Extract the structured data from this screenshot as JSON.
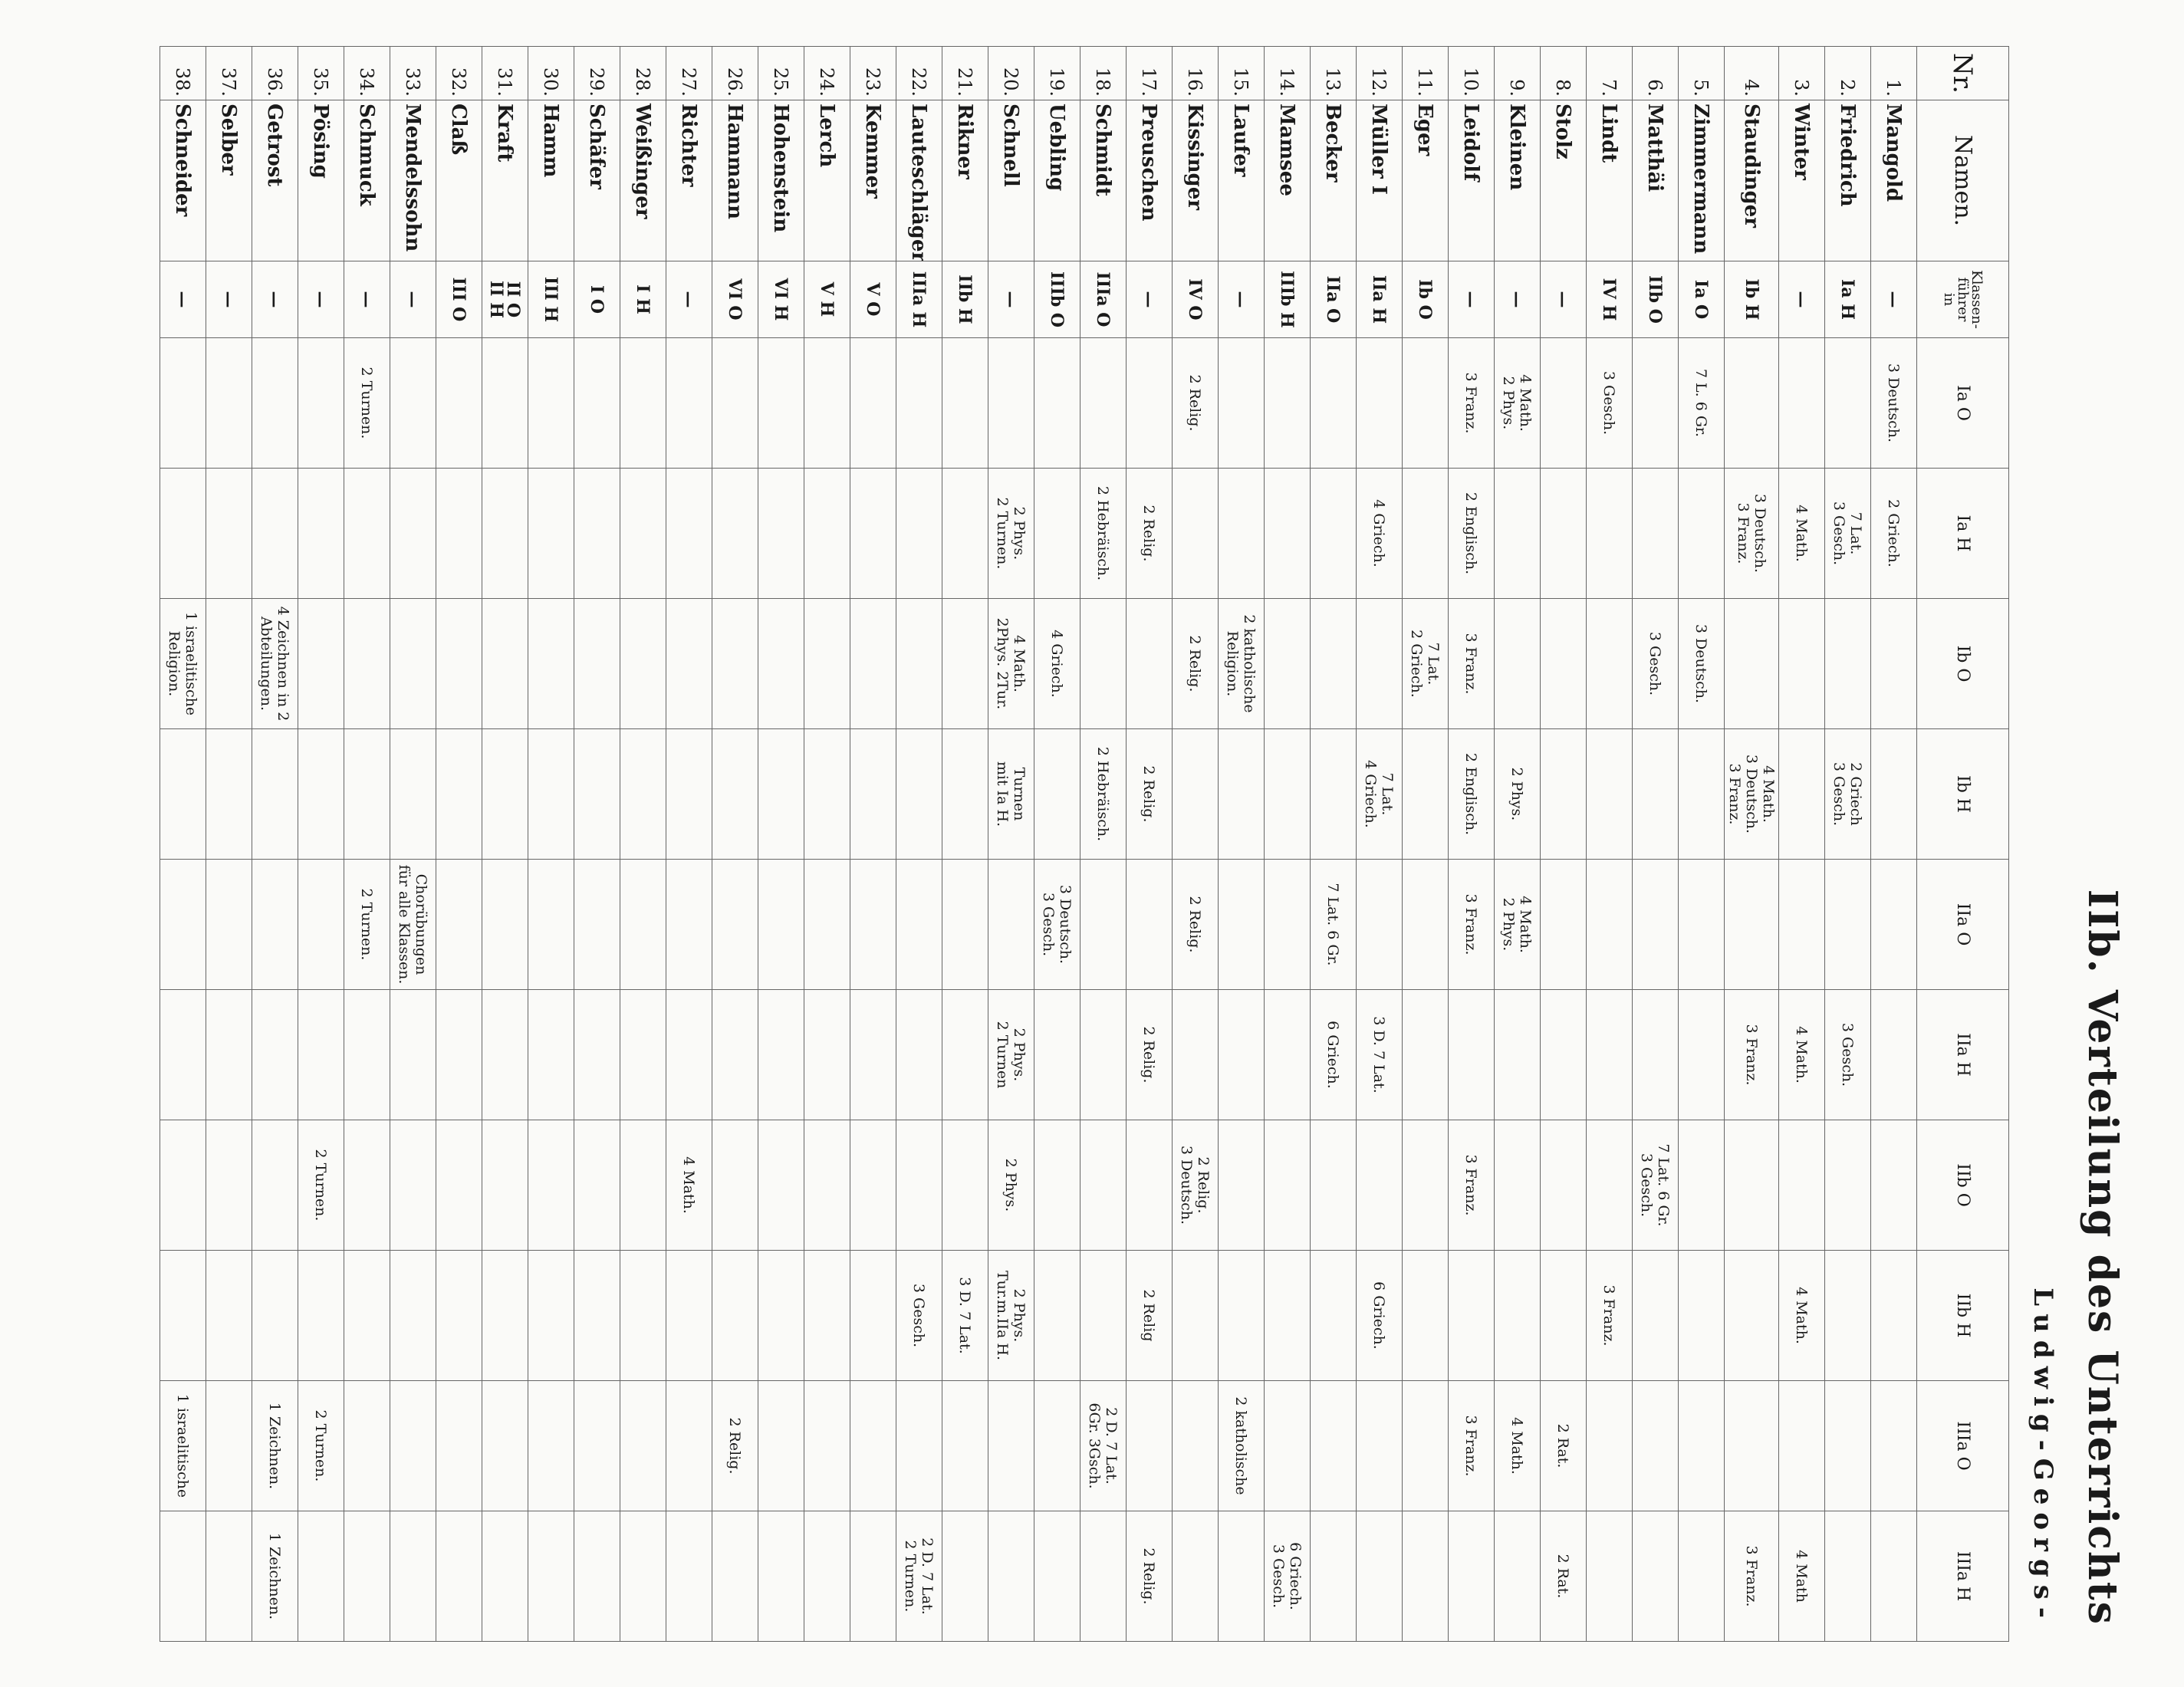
{
  "title": {
    "main": "IIb. Verteilung des Unterrichts",
    "sub": "Ludwig-Georgs-"
  },
  "headers": {
    "nr": "Nr.",
    "name": "Namen.",
    "klassenfuehrer": "Klassen-\nführer\nin",
    "classes": [
      "Ia O",
      "Ia H",
      "Ib O",
      "Ib H",
      "IIa O",
      "IIa H",
      "IIb O",
      "IIb H",
      "IIIa O",
      "IIIa H"
    ]
  },
  "rows": [
    {
      "nr": "1.",
      "name": "Mangold",
      "kl": "—",
      "cells": [
        "3 Deutsch.",
        "2 Griech.",
        "",
        "",
        "",
        "",
        "",
        "",
        "",
        ""
      ]
    },
    {
      "nr": "2.",
      "name": "Friedrich",
      "kl": "Ia H",
      "cells": [
        "",
        "7 Lat.\n3 Gesch.",
        "",
        "2 Griech\n3 Gesch.",
        "",
        "3 Gesch.",
        "",
        "",
        "",
        ""
      ]
    },
    {
      "nr": "3.",
      "name": "Winter",
      "kl": "—",
      "cells": [
        "",
        "4 Math.",
        "",
        "",
        "",
        "4 Math.",
        "",
        "4 Math.",
        "",
        "4 Math"
      ]
    },
    {
      "nr": "4.",
      "name": "Staudinger",
      "kl": "Ib H",
      "cells": [
        "",
        "3 Deutsch.\n3 Franz.",
        "",
        "4 Math.\n3 Deutsch.\n3 Franz.",
        "",
        "3 Franz.",
        "",
        "",
        "",
        "3 Franz."
      ]
    },
    {
      "nr": "5.",
      "name": "Zimmermann",
      "kl": "Ia O",
      "cells": [
        "7 L. 6 Gr.",
        "",
        "3 Deutsch.",
        "",
        "",
        "",
        "",
        "",
        "",
        ""
      ]
    },
    {
      "nr": "6.",
      "name": "Matthäi",
      "kl": "IIb O",
      "cells": [
        "",
        "",
        "3 Gesch.",
        "",
        "",
        "",
        "7 Lat. 6 Gr.\n3 Gesch.",
        "",
        "",
        ""
      ]
    },
    {
      "nr": "7.",
      "name": "Lindt",
      "kl": "IV H",
      "cells": [
        "3 Gesch.",
        "",
        "",
        "",
        "",
        "",
        "",
        "3 Franz.",
        "",
        ""
      ]
    },
    {
      "nr": "8.",
      "name": "Stolz",
      "kl": "—",
      "cells": [
        "",
        "",
        "",
        "",
        "",
        "",
        "",
        "",
        "2 Rat.",
        "2 Rat."
      ]
    },
    {
      "nr": "9.",
      "name": "Kleinen",
      "kl": "—",
      "cells": [
        "4 Math.\n2 Phys.",
        "",
        "",
        "2 Phys.",
        "4 Math.\n2 Phys.",
        "",
        "",
        "",
        "4 Math.",
        ""
      ]
    },
    {
      "nr": "10.",
      "name": "Leidolf",
      "kl": "—",
      "cells": [
        "3 Franz.",
        "2 Englisch.",
        "3 Franz.",
        "2 Englisch.",
        "3 Franz.",
        "",
        "3 Franz.",
        "",
        "3 Franz.",
        ""
      ]
    },
    {
      "nr": "11.",
      "name": "Eger",
      "kl": "Ib O",
      "cells": [
        "",
        "",
        "7 Lat.\n2 Griech.",
        "",
        "",
        "",
        "",
        "",
        "",
        ""
      ]
    },
    {
      "nr": "12.",
      "name": "Müller I",
      "kl": "IIa H",
      "cells": [
        "",
        "4 Griech.",
        "",
        "7 Lat.\n4 Griech.",
        "",
        "3 D. 7 Lat.",
        "",
        "6 Griech.",
        "",
        ""
      ]
    },
    {
      "nr": "13.",
      "name": "Becker",
      "kl": "IIa O",
      "cells": [
        "",
        "",
        "",
        "",
        "7 Lat. 6 Gr.",
        "6 Griech.",
        "",
        "",
        "",
        ""
      ]
    },
    {
      "nr": "14.",
      "name": "Mamsee",
      "kl": "IIIb H",
      "cells": [
        "",
        "",
        "",
        "",
        "",
        "",
        "",
        "",
        "",
        "6 Griech.\n3 Gesch."
      ]
    },
    {
      "nr": "15.",
      "name": "Laufer",
      "kl": "—",
      "cells": [
        "",
        "",
        "2 katholische Religion.",
        "",
        "",
        "",
        "",
        "",
        "2 katholische",
        ""
      ]
    },
    {
      "nr": "16.",
      "name": "Kissinger",
      "kl": "IV O",
      "cells": [
        "2 Relig.",
        "",
        "2 Relig.",
        "",
        "2 Relig.",
        "",
        "2 Relig.\n3 Deutsch.",
        "",
        "",
        ""
      ]
    },
    {
      "nr": "17.",
      "name": "Preuschen",
      "kl": "—",
      "cells": [
        "",
        "2 Relig.",
        "",
        "2 Relig.",
        "",
        "2 Relig.",
        "",
        "2 Relig",
        "",
        "2 Relig."
      ]
    },
    {
      "nr": "18.",
      "name": "Schmidt",
      "kl": "IIIa O",
      "cells": [
        "",
        "2 Hebräisch.",
        "",
        "2 Hebräisch.",
        "",
        "",
        "",
        "",
        "2 D. 7 Lat.\n6Gr. 3Gsch.",
        ""
      ]
    },
    {
      "nr": "19.",
      "name": "Uebling",
      "kl": "IIIb O",
      "cells": [
        "",
        "",
        "4 Griech.",
        "",
        "3 Deutsch.\n3 Gesch.",
        "",
        "",
        "",
        "",
        ""
      ]
    },
    {
      "nr": "20.",
      "name": "Schnell",
      "kl": "—",
      "cells": [
        "",
        "2 Phys.\n2 Turnen.",
        "4 Math.\n2Phys. 2Tur.",
        "Turnen\nmit Ia H.",
        "",
        "2 Phys.\n2 Turnen",
        "2 Phys.",
        "2 Phys.\nTur.m.IIa H.",
        "",
        ""
      ]
    },
    {
      "nr": "21.",
      "name": "Rikner",
      "kl": "IIb H",
      "cells": [
        "",
        "",
        "",
        "",
        "",
        "",
        "",
        "3 D. 7 Lat.",
        "",
        ""
      ]
    },
    {
      "nr": "22.",
      "name": "Lauteschläger",
      "kl": "IIIa H",
      "cells": [
        "",
        "",
        "",
        "",
        "",
        "",
        "",
        "3 Gesch.",
        "",
        "2 D. 7 Lat.\n2 Turnen."
      ]
    },
    {
      "nr": "23.",
      "name": "Kemmer",
      "kl": "V O",
      "cells": [
        "",
        "",
        "",
        "",
        "",
        "",
        "",
        "",
        "",
        ""
      ]
    },
    {
      "nr": "24.",
      "name": "Lerch",
      "kl": "V H",
      "cells": [
        "",
        "",
        "",
        "",
        "",
        "",
        "",
        "",
        "",
        ""
      ]
    },
    {
      "nr": "25.",
      "name": "Hohenstein",
      "kl": "VI H",
      "cells": [
        "",
        "",
        "",
        "",
        "",
        "",
        "",
        "",
        "",
        ""
      ]
    },
    {
      "nr": "26.",
      "name": "Hammann",
      "kl": "VI O",
      "cells": [
        "",
        "",
        "",
        "",
        "",
        "",
        "",
        "",
        "2 Relig.",
        ""
      ]
    },
    {
      "nr": "27.",
      "name": "Richter",
      "kl": "—",
      "cells": [
        "",
        "",
        "",
        "",
        "",
        "",
        "4 Math.",
        "",
        "",
        ""
      ]
    },
    {
      "nr": "28.",
      "name": "Weißinger",
      "kl": "I H",
      "cells": [
        "",
        "",
        "",
        "",
        "",
        "",
        "",
        "",
        "",
        ""
      ]
    },
    {
      "nr": "29.",
      "name": "Schäfer",
      "kl": "I O",
      "cells": [
        "",
        "",
        "",
        "",
        "",
        "",
        "",
        "",
        "",
        ""
      ]
    },
    {
      "nr": "30.",
      "name": "Hamm",
      "kl": "III H",
      "cells": [
        "",
        "",
        "",
        "",
        "",
        "",
        "",
        "",
        "",
        ""
      ]
    },
    {
      "nr": "31.",
      "name": "Kraft",
      "kl": "II O\nII H",
      "cells": [
        "",
        "",
        "",
        "",
        "",
        "",
        "",
        "",
        "",
        ""
      ]
    },
    {
      "nr": "32.",
      "name": "Claß",
      "kl": "III O",
      "cells": [
        "",
        "",
        "",
        "",
        "",
        "",
        "",
        "",
        "",
        ""
      ]
    },
    {
      "nr": "33.",
      "name": "Mendelssohn",
      "kl": "—",
      "cells": [
        "",
        "",
        "",
        "",
        "Chorübungen für alle Klassen.",
        "",
        "",
        "",
        "",
        ""
      ]
    },
    {
      "nr": "34.",
      "name": "Schmuck",
      "kl": "—",
      "cells": [
        "2 Turnen.",
        "",
        "",
        "",
        "2 Turnen.",
        "",
        "",
        "",
        "",
        ""
      ]
    },
    {
      "nr": "35.",
      "name": "Pösing",
      "kl": "—",
      "cells": [
        "",
        "",
        "",
        "",
        "",
        "",
        "2 Turnen.",
        "",
        "2 Turnen.",
        ""
      ]
    },
    {
      "nr": "36.",
      "name": "Getrost",
      "kl": "—",
      "cells": [
        "",
        "",
        "4 Zeichnen in 2 Abteilungen.",
        "",
        "",
        "",
        "",
        "",
        "1 Zeichnen.",
        "1 Zeichnen."
      ]
    },
    {
      "nr": "37.",
      "name": "Selber",
      "kl": "—",
      "cells": [
        "",
        "",
        "",
        "",
        "",
        "",
        "",
        "",
        "",
        ""
      ]
    },
    {
      "nr": "38.",
      "name": "Schneider",
      "kl": "—",
      "cells": [
        "",
        "",
        "1 israelitische Religion.",
        "",
        "",
        "",
        "",
        "",
        "1 israelitische",
        ""
      ]
    }
  ]
}
